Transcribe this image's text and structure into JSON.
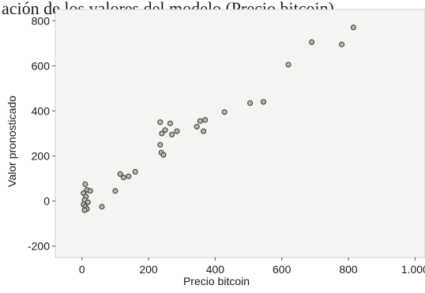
{
  "header": {
    "cut_title": "ación de los valores del modelo (Precio bitcoin)"
  },
  "colors": {
    "plot_background": "#f4f4f2",
    "frame": "#cfcfcf",
    "point_fill": "#b8b8b0",
    "point_stroke": "#333333",
    "text": "#1a1a1a"
  },
  "chart_data": {
    "type": "scatter",
    "title": "",
    "xlabel": "Precio bitcoin",
    "ylabel": "Valor pronosticado",
    "xlim": [
      -80,
      1030
    ],
    "ylim": [
      -250,
      850
    ],
    "xticks": [
      0,
      200,
      400,
      600,
      800,
      1000
    ],
    "xtick_labels": [
      "0",
      "200",
      "400",
      "600",
      "800",
      "1.000"
    ],
    "yticks": [
      -200,
      0,
      200,
      400,
      600,
      800
    ],
    "ytick_labels": [
      "-200",
      "0",
      "200",
      "400",
      "600",
      "800"
    ],
    "grid": false,
    "legend": "none",
    "points": [
      {
        "x": 815,
        "y": 770
      },
      {
        "x": 690,
        "y": 705
      },
      {
        "x": 780,
        "y": 695
      },
      {
        "x": 620,
        "y": 605
      },
      {
        "x": 545,
        "y": 440
      },
      {
        "x": 505,
        "y": 435
      },
      {
        "x": 428,
        "y": 395
      },
      {
        "x": 370,
        "y": 360
      },
      {
        "x": 355,
        "y": 355
      },
      {
        "x": 345,
        "y": 330
      },
      {
        "x": 365,
        "y": 310
      },
      {
        "x": 235,
        "y": 350
      },
      {
        "x": 265,
        "y": 345
      },
      {
        "x": 250,
        "y": 315
      },
      {
        "x": 285,
        "y": 310
      },
      {
        "x": 240,
        "y": 300
      },
      {
        "x": 270,
        "y": 295
      },
      {
        "x": 235,
        "y": 250
      },
      {
        "x": 238,
        "y": 215
      },
      {
        "x": 245,
        "y": 205
      },
      {
        "x": 160,
        "y": 130
      },
      {
        "x": 115,
        "y": 120
      },
      {
        "x": 140,
        "y": 110
      },
      {
        "x": 125,
        "y": 105
      },
      {
        "x": 100,
        "y": 45
      },
      {
        "x": 10,
        "y": 75
      },
      {
        "x": 15,
        "y": 50
      },
      {
        "x": 25,
        "y": 45
      },
      {
        "x": 5,
        "y": 35
      },
      {
        "x": 12,
        "y": 20
      },
      {
        "x": 8,
        "y": 5
      },
      {
        "x": 18,
        "y": -5
      },
      {
        "x": 5,
        "y": -15
      },
      {
        "x": 10,
        "y": -25
      },
      {
        "x": 15,
        "y": -35
      },
      {
        "x": 8,
        "y": -40
      },
      {
        "x": 60,
        "y": -25
      }
    ]
  }
}
